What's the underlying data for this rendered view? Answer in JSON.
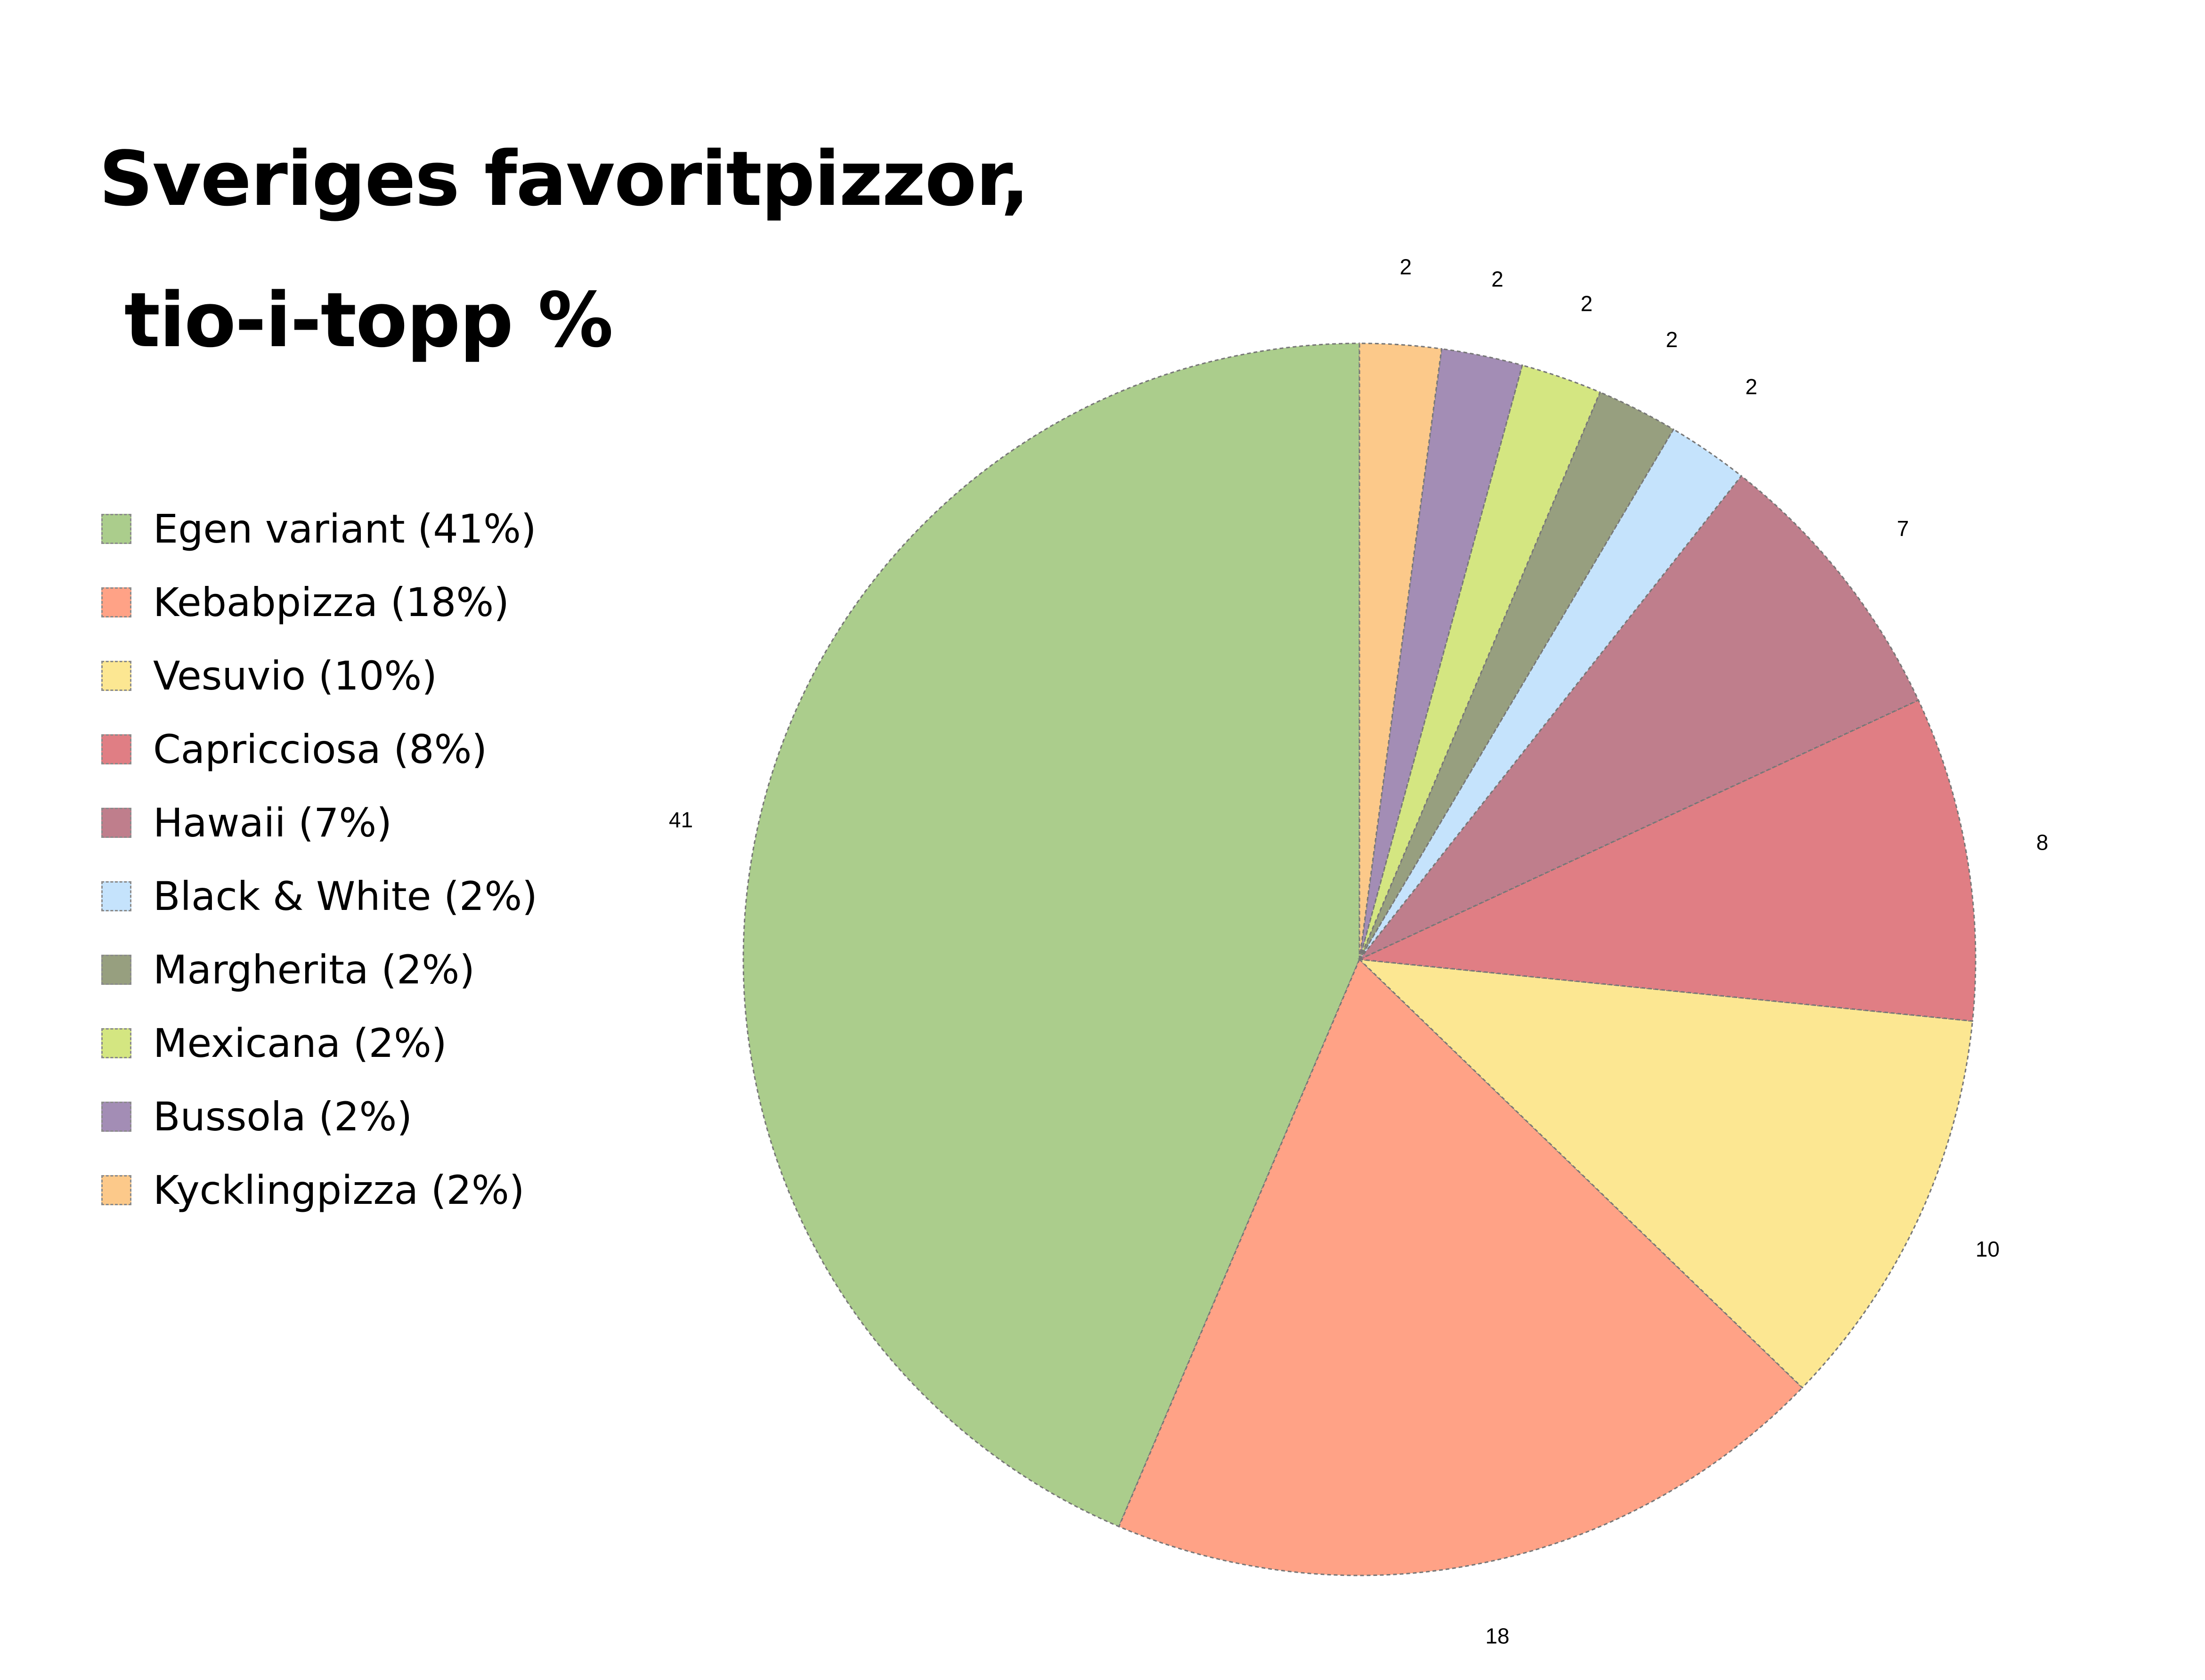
{
  "title": {
    "line1": "Sveriges favoritpizzor,",
    "line2": " tio-i-topp %"
  },
  "legend": {
    "items": [
      {
        "label": "Egen variant (41%)",
        "color": "#abcd8c"
      },
      {
        "label": "Kebabpizza (18%)",
        "color": "#ffa286"
      },
      {
        "label": "Vesuvio (10%)",
        "color": "#fce792"
      },
      {
        "label": "Capricciosa (8%)",
        "color": "#e07e84"
      },
      {
        "label": "Hawaii (7%)",
        "color": "#bf7e8c"
      },
      {
        "label": "Black & White (2%)",
        "color": "#c5e3fc"
      },
      {
        "label": "Margherita (2%)",
        "color": "#979f7f"
      },
      {
        "label": "Mexicana (2%)",
        "color": "#d4e681"
      },
      {
        "label": "Bussola (2%)",
        "color": "#a38db5"
      },
      {
        "label": "Kycklingpizza (2%)",
        "color": "#fcc98a"
      }
    ]
  },
  "chart_data": {
    "type": "pie",
    "title": "Sveriges favoritpizzor, tio-i-topp %",
    "categories": [
      "Egen variant",
      "Kebabpizza",
      "Vesuvio",
      "Capricciosa",
      "Hawaii",
      "Black & White",
      "Margherita",
      "Mexicana",
      "Bussola",
      "Kycklingpizza"
    ],
    "values": [
      41,
      18,
      10,
      8,
      7,
      2,
      2,
      2,
      2,
      2
    ],
    "data_labels": [
      "41",
      "18",
      "10",
      "8",
      "7",
      "2",
      "2",
      "2",
      "2",
      "2"
    ],
    "colors": [
      "#abcd8c",
      "#ffa286",
      "#fce792",
      "#e07e84",
      "#bf7e8c",
      "#c5e3fc",
      "#979f7f",
      "#d4e681",
      "#a38db5",
      "#fcc98a"
    ],
    "legend_position": "left",
    "direction": "counterclockwise from top"
  }
}
